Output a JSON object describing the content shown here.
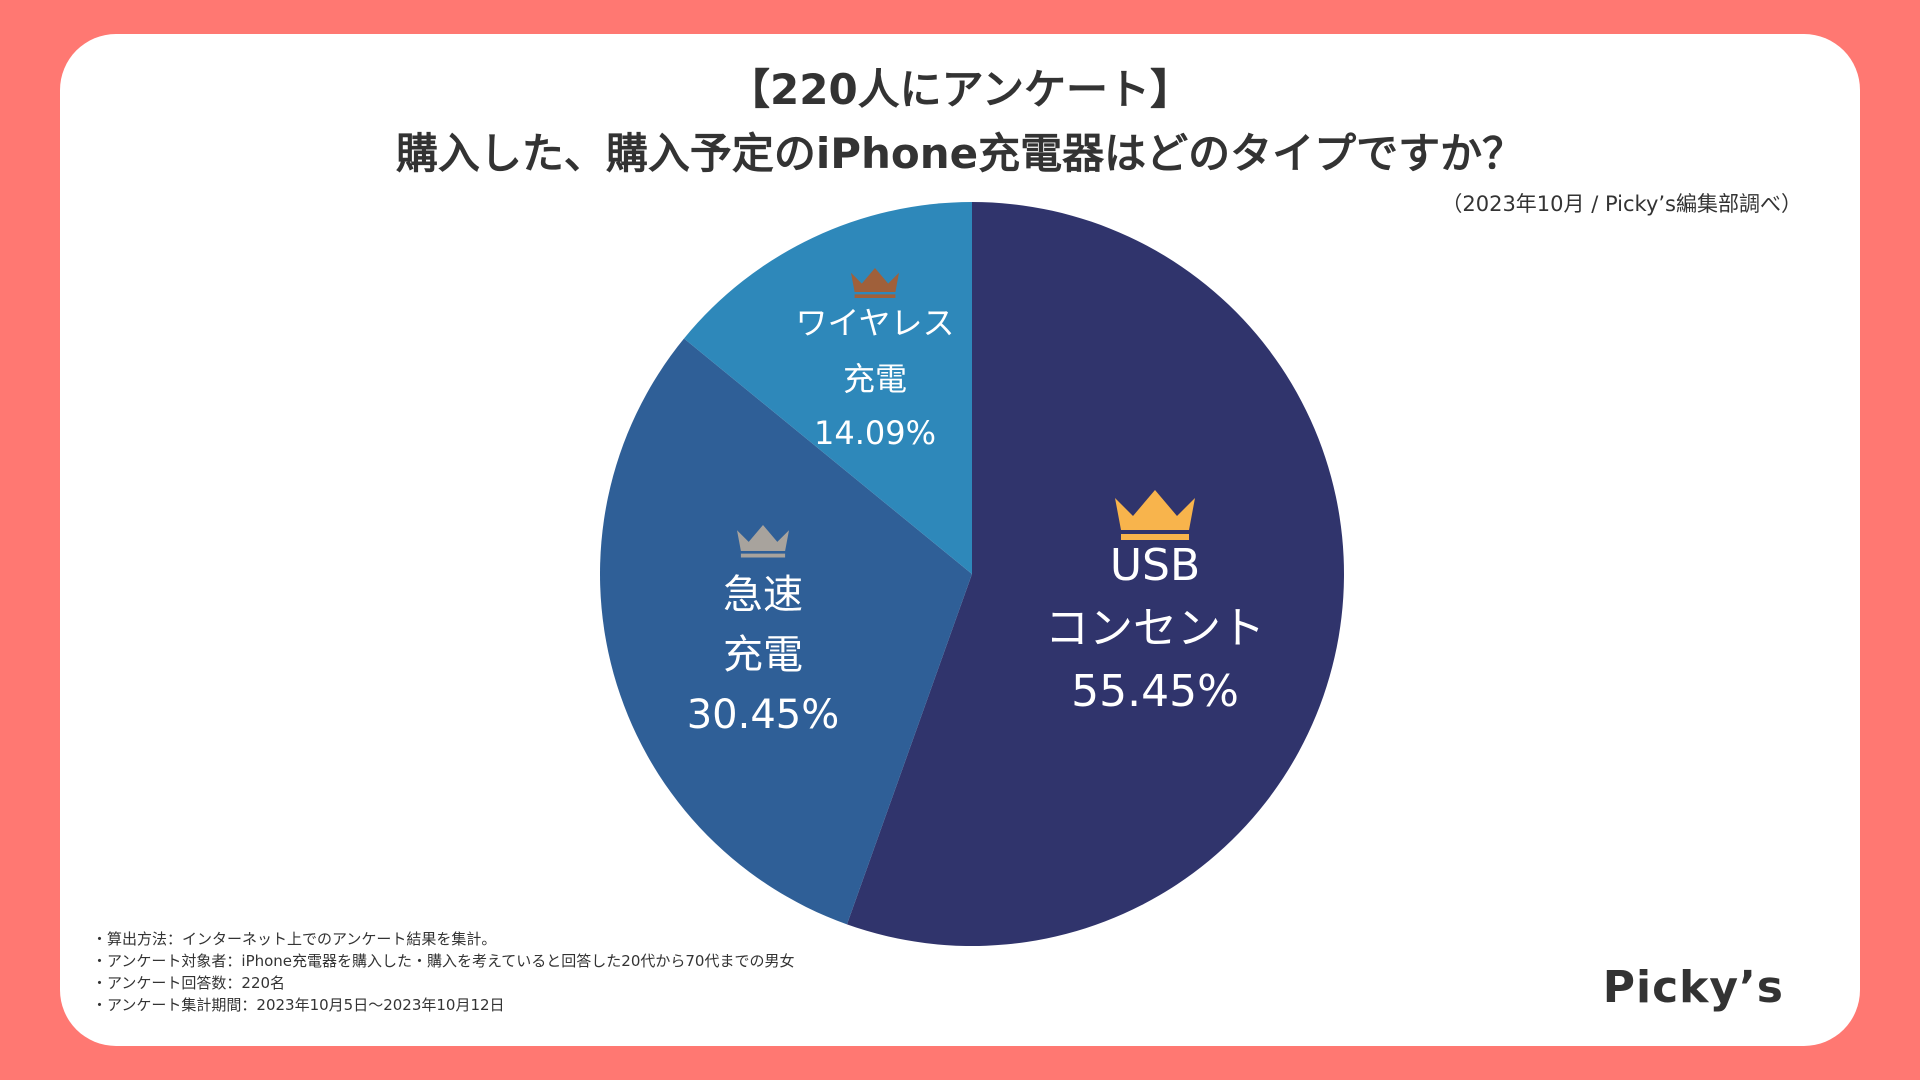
{
  "title_line1": "【220人にアンケート】",
  "title_line2": "購入した、購入予定のiPhone充電器はどのタイプですか？",
  "source": "（2023年10月 / Picky’s編集部調べ）",
  "chart_data": {
    "type": "pie",
    "start_angle_deg": 0,
    "direction": "clockwise",
    "slices": [
      {
        "label_line1": "USB",
        "label_line2": "コンセント",
        "value": 55.45,
        "value_label": "55.45%",
        "color": "#30346C",
        "crown_color": "#F8B44C",
        "rank": 1
      },
      {
        "label_line1": "急速",
        "label_line2": "充電",
        "value": 30.45,
        "value_label": "30.45%",
        "color": "#2F5F97",
        "crown_color": "#A8A39D",
        "rank": 2
      },
      {
        "label_line1": "ワイヤレス",
        "label_line2": "充電",
        "value": 14.09,
        "value_label": "14.09%",
        "color": "#2E88BA",
        "crown_color": "#A0603A",
        "rank": 3
      }
    ]
  },
  "notes": [
    "・算出方法：インターネット上でのアンケート結果を集計。",
    "・アンケート対象者：iPhone充電器を購入した・購入を考えていると回答した20代から70代までの男女",
    "・アンケート回答数：220名",
    "・アンケート集計期間：2023年10月5日〜2023年10月12日"
  ],
  "logo": "Picky’s",
  "colors": {
    "background": "#FF7872",
    "card": "#FFFFFF",
    "text": "#333333"
  }
}
